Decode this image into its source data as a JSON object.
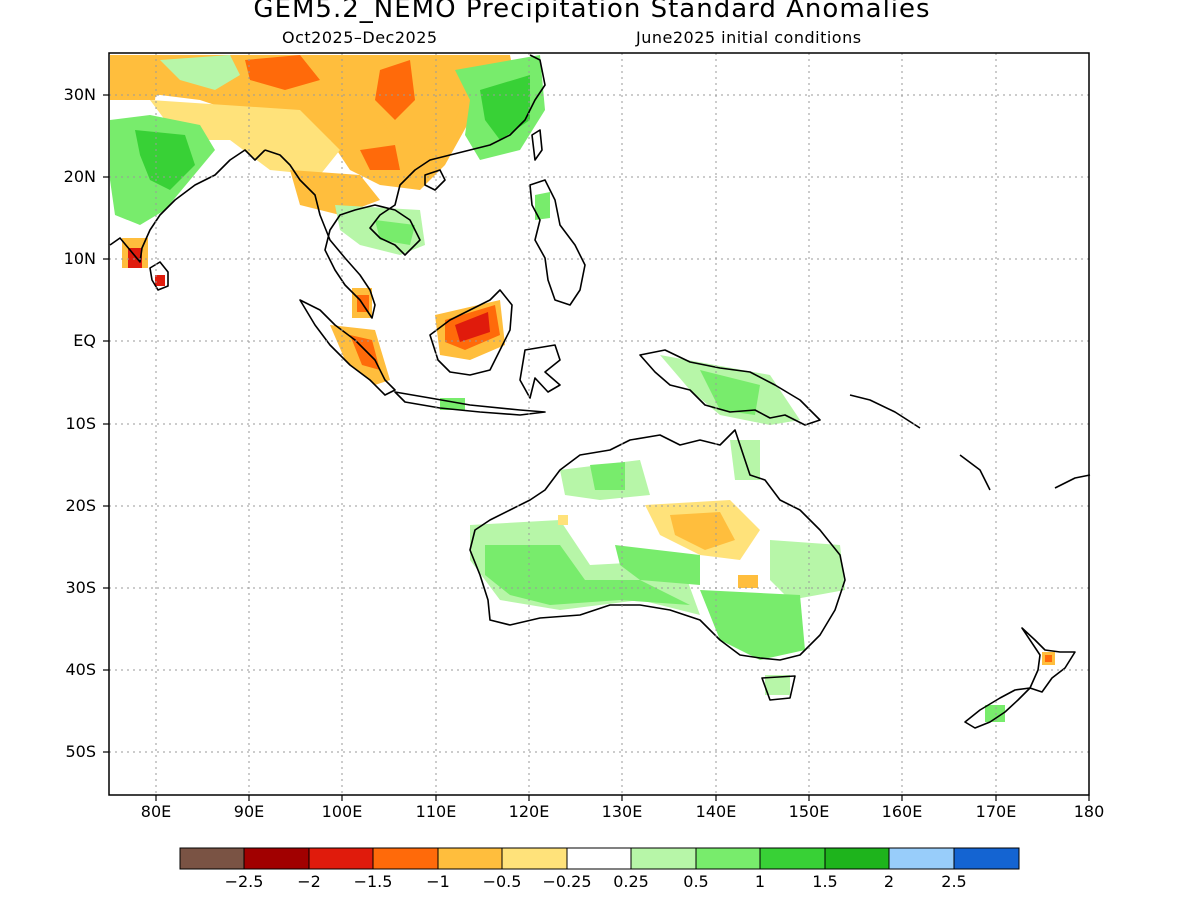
{
  "title": "GEM5.2_NEMO Precipitation Standard Anomalies",
  "subtitle_left": "Oct2025–Dec2025",
  "subtitle_right": "June2025 initial conditions",
  "map": {
    "lon_range": [
      75,
      180
    ],
    "lat_range": [
      -55,
      35
    ],
    "lat_labels": [
      "30N",
      "20N",
      "10N",
      "EQ",
      "10S",
      "20S",
      "30S",
      "40S",
      "50S"
    ],
    "lon_labels": [
      "80E",
      "90E",
      "100E",
      "110E",
      "120E",
      "130E",
      "140E",
      "150E",
      "160E",
      "170E",
      "180"
    ],
    "gridlines": true
  },
  "colorbar": {
    "labels": [
      "−2.5",
      "−2",
      "−1.5",
      "−1",
      "−0.5",
      "−0.25",
      "0.25",
      "0.5",
      "1",
      "1.5",
      "2",
      "2.5"
    ],
    "colors": [
      "#7a5344",
      "#a10000",
      "#e01b0c",
      "#ff6a0a",
      "#ffbe3d",
      "#ffe27a",
      "#ffffff",
      "#b7f6a8",
      "#78ec6c",
      "#38d136",
      "#1eb41c",
      "#98cdfa",
      "#1464d2"
    ]
  }
}
